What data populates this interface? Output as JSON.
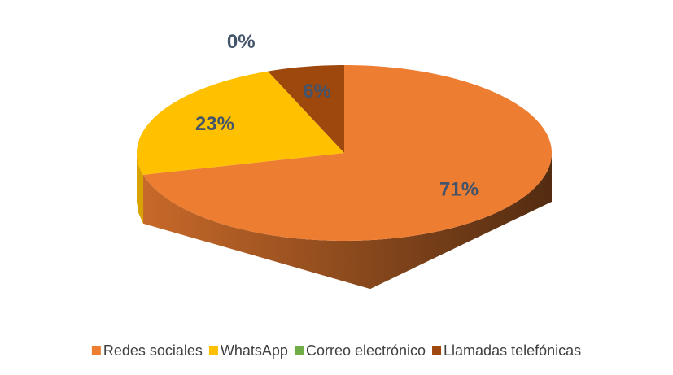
{
  "chart_data": {
    "type": "pie",
    "categories": [
      "Redes sociales",
      "WhatsApp",
      "Correo electrónico",
      "Llamadas telefónicas"
    ],
    "values": [
      71,
      23,
      0,
      6
    ],
    "value_labels": [
      "71%",
      "23%",
      "0%",
      "6%"
    ],
    "colors": [
      "#ed7d31",
      "#ffc000",
      "#70ad47",
      "#9e480e"
    ],
    "legend": "bottom"
  }
}
